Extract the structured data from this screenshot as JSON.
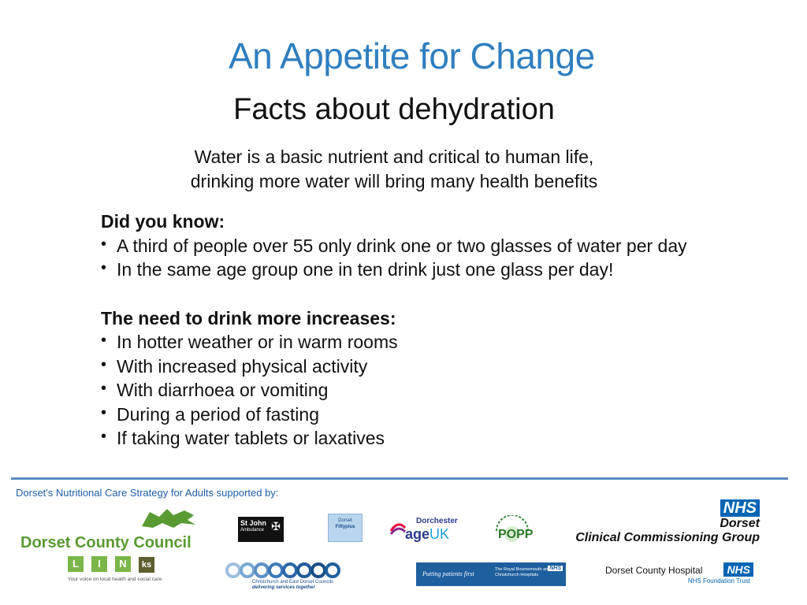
{
  "banner": "An Appetite for Change",
  "heading": "Facts about dehydration",
  "intro": {
    "line1": "Water is a basic nutrient and critical to human life,",
    "line2": "drinking more water will bring many health benefits"
  },
  "did_you_know": {
    "title": "Did you know:",
    "items": [
      "A third of people over 55 only drink one or two glasses of water per day",
      "In the same age group one in ten drink just one glass per day!"
    ]
  },
  "need_to_drink": {
    "title": "The need to drink more increases:",
    "items": [
      "In hotter weather or in warm rooms",
      "With increased physical activity",
      "With diarrhoea or vomiting",
      "During a period of fasting",
      "If taking water tablets or laxatives"
    ]
  },
  "bullet": "•",
  "footer": {
    "supported_by": "Dorset's Nutritional Care Strategy for Adults supported by:",
    "dorset_county_council": "Dorset County Council",
    "links_letters": [
      "L",
      "I",
      "N",
      "ks"
    ],
    "links_tagline": "Your voice on local health and social care",
    "st_john": {
      "line1": "St John",
      "line2": "Ambulance"
    },
    "fifty_plus": {
      "line1": "Dorset",
      "line2": "Fiftyplus"
    },
    "age_uk": {
      "town": "Dorchester",
      "age": "age",
      "uk": "UK"
    },
    "popp": "POPP",
    "nhs": "NHS",
    "ccg": {
      "line1": "Dorset",
      "line2": "Clinical Commissioning Group"
    },
    "christchurch": {
      "line1": "Christchurch and East Dorset Councils",
      "line2": "delivering services together"
    },
    "rbch": {
      "tagline": "Putting patients first",
      "line1": "The Royal Bournemouth and",
      "line2": "Christchurch Hospitals"
    },
    "dch": {
      "name": "Dorset County Hospital",
      "trust": "NHS Foundation Trust"
    }
  },
  "colors": {
    "banner": "#2f7fc0",
    "rule": "#5b8ac7",
    "nhs_blue": "#0065b3",
    "council_green": "#5a9a33"
  }
}
